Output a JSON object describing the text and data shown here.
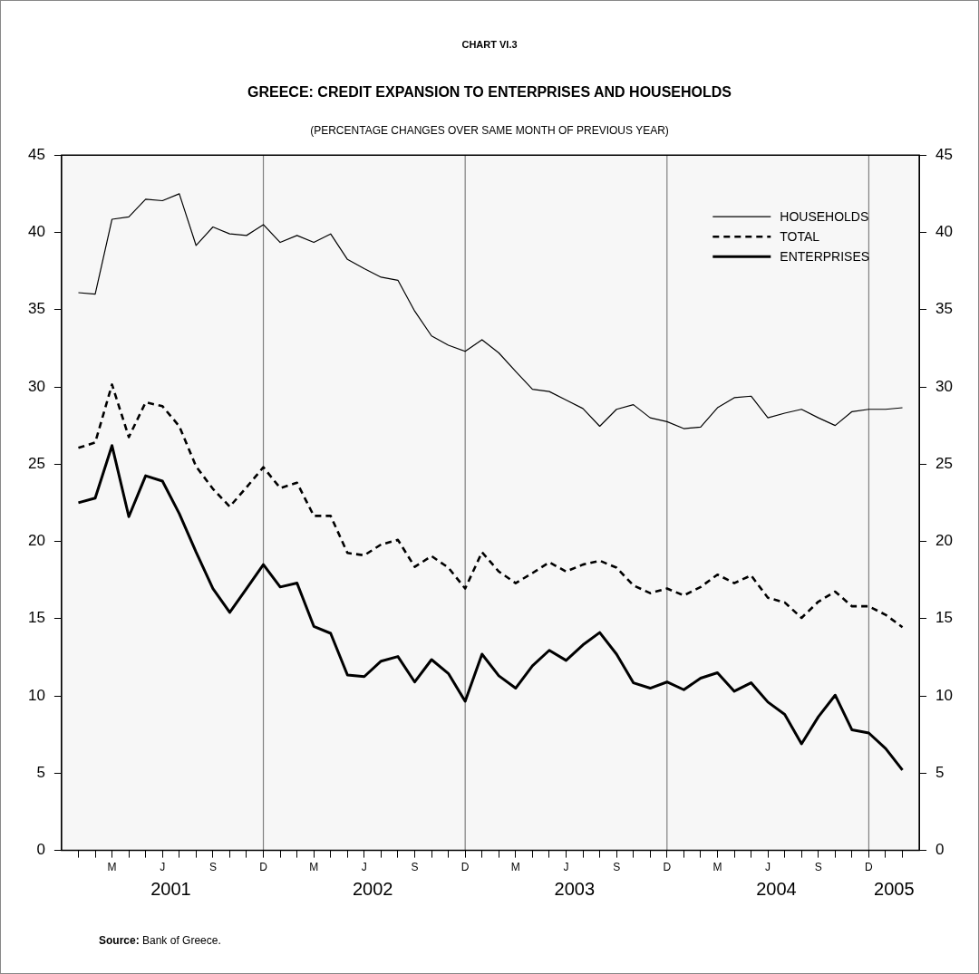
{
  "chart_data": {
    "type": "line",
    "title": "GREECE: CREDIT EXPANSION TO ENTERPRISES AND HOUSEHOLDS",
    "subtitle": "(PERCENTAGE CHANGES OVER SAME MONTH OF PREVIOUS YEAR)",
    "annotations": [
      "CHART VI.3",
      "2001",
      "2002",
      "2003",
      "2004",
      "2005",
      "Source: Bank of Greece."
    ],
    "categories": [
      null,
      null,
      "M",
      null,
      null,
      "J",
      null,
      null,
      "S",
      null,
      null,
      "D",
      null,
      null,
      "M",
      null,
      null,
      "J",
      null,
      null,
      "S",
      null,
      null,
      "D",
      null,
      null,
      "M",
      null,
      null,
      "J",
      null,
      null,
      "S",
      null,
      null,
      "D",
      null,
      null,
      "M",
      null,
      null,
      "J",
      null,
      null,
      "S",
      null,
      null,
      "D",
      null,
      null
    ],
    "series": [
      {
        "name": "HOUSEHOLDS",
        "color": "#000000",
        "line_style": "solid",
        "values": [
          36.1,
          36.0,
          40.85,
          41.0,
          42.15,
          42.05,
          42.5,
          39.15,
          40.35,
          39.9,
          39.8,
          40.5,
          39.35,
          39.8,
          39.35,
          39.9,
          38.25,
          37.65,
          37.1,
          36.9,
          34.9,
          33.3,
          32.7,
          32.3,
          33.05,
          32.2,
          31.0,
          29.85,
          29.7,
          29.15,
          28.6,
          27.45,
          28.55,
          28.85,
          28.0,
          27.75,
          27.3,
          27.4,
          28.65,
          29.3,
          29.4,
          28.0,
          28.3,
          28.55,
          28.0,
          27.5,
          28.4,
          28.55,
          28.55,
          28.65
        ]
      },
      {
        "name": "TOTAL",
        "color": "#000000",
        "line_style": "dashed",
        "values": [
          26.05,
          26.4,
          30.15,
          26.75,
          29.0,
          28.75,
          27.45,
          24.85,
          23.4,
          22.25,
          23.5,
          24.8,
          23.45,
          23.8,
          21.65,
          21.65,
          19.25,
          19.1,
          19.8,
          20.1,
          18.35,
          19.05,
          18.3,
          16.95,
          19.3,
          18.05,
          17.3,
          17.95,
          18.65,
          18.05,
          18.5,
          18.75,
          18.3,
          17.15,
          16.65,
          16.95,
          16.5,
          17.05,
          17.85,
          17.3,
          17.8,
          16.35,
          16.05,
          15.05,
          16.1,
          16.75,
          15.8,
          15.8,
          15.25,
          14.45
        ]
      },
      {
        "name": "ENTERPRISES",
        "color": "#000000",
        "line_style": "solid",
        "values": [
          22.5,
          22.8,
          26.2,
          21.6,
          24.25,
          23.9,
          21.8,
          19.3,
          16.95,
          15.4,
          16.95,
          18.5,
          17.05,
          17.3,
          14.5,
          14.05,
          11.35,
          11.25,
          12.25,
          12.55,
          10.9,
          12.35,
          11.45,
          9.65,
          12.7,
          11.3,
          10.5,
          11.95,
          12.95,
          12.3,
          13.3,
          14.1,
          12.7,
          10.85,
          10.5,
          10.9,
          10.4,
          11.15,
          11.5,
          10.3,
          10.85,
          9.6,
          8.8,
          6.9,
          8.65,
          10.05,
          7.8,
          7.6,
          6.6,
          5.2
        ]
      }
    ],
    "ylim": [
      0,
      45
    ],
    "yticks": [
      0,
      5,
      10,
      15,
      20,
      25,
      30,
      35,
      40,
      45
    ],
    "y2lim": [
      0,
      45
    ],
    "y2ticks": [
      0,
      5,
      10,
      15,
      20,
      25,
      30,
      35,
      40,
      45
    ],
    "grid": "x",
    "legend": "top right",
    "marker": "none"
  }
}
